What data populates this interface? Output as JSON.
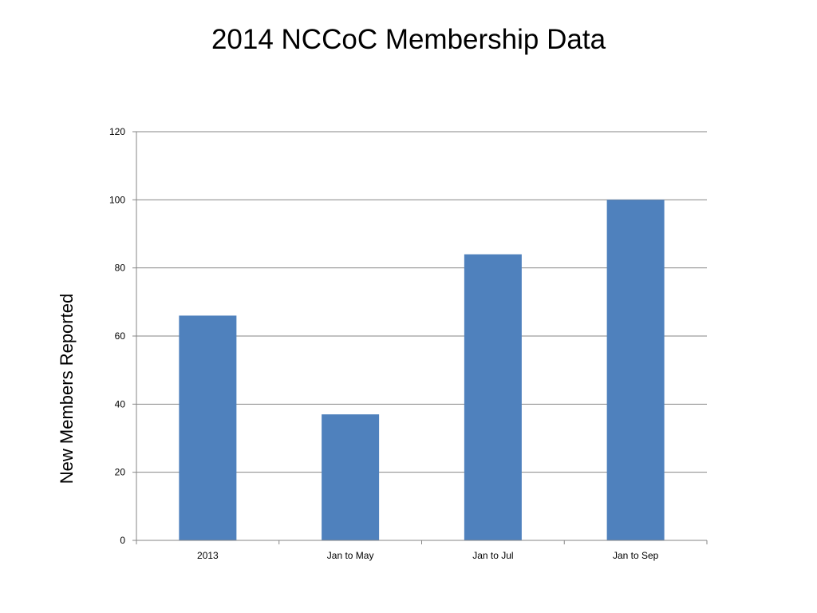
{
  "chart_data": {
    "type": "bar",
    "title": "2014 NCCoC Membership Data",
    "xlabel": "",
    "ylabel": "New Members Reported",
    "categories": [
      "2013",
      "Jan to May",
      "Jan to Jul",
      "Jan to Sep"
    ],
    "values": [
      66,
      37,
      84,
      100
    ],
    "ylim": [
      0,
      120
    ],
    "yticks": [
      0,
      20,
      40,
      60,
      80,
      100,
      120
    ],
    "grid": true,
    "legend": "none",
    "bar_color": "#4F81BD",
    "gridline_color": "#868686"
  }
}
